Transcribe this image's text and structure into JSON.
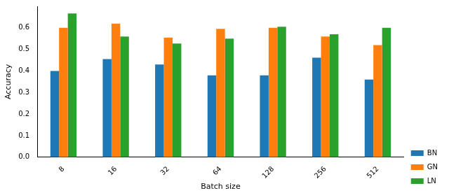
{
  "chart_data": {
    "type": "bar",
    "x_label": "Batch size",
    "y_label": "Accuracy",
    "categories": [
      "8",
      "16",
      "32",
      "64",
      "128",
      "256",
      "512"
    ],
    "series": [
      {
        "name": "BN",
        "color": "#1f77b4",
        "values": [
          0.4,
          0.455,
          0.43,
          0.38,
          0.38,
          0.462,
          0.36
        ]
      },
      {
        "name": "GN",
        "color": "#ff7f0e",
        "values": [
          0.6,
          0.62,
          0.555,
          0.595,
          0.6,
          0.56,
          0.52
        ]
      },
      {
        "name": "LN",
        "color": "#2ca02c",
        "values": [
          0.667,
          0.56,
          0.527,
          0.55,
          0.605,
          0.57,
          0.6
        ]
      }
    ],
    "ylim": [
      0,
      0.7
    ],
    "yticks": [
      {
        "value": 0,
        "label": "0.0"
      },
      0.1,
      0.2,
      0.3,
      0.4,
      0.5,
      0.6
    ],
    "grid": false,
    "legend": "lower right"
  }
}
